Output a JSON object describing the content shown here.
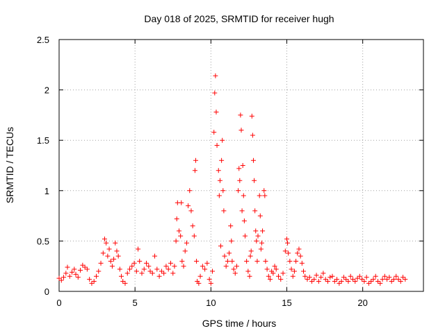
{
  "chart_data": {
    "type": "scatter",
    "title": "Day 018 of 2025, SRMTID for receiver hugh",
    "xlabel": "GPS time / hours",
    "ylabel": "SRMTID / TECUs",
    "xlim": [
      0,
      24
    ],
    "ylim": [
      0,
      2.5
    ],
    "xticks": [
      0,
      5,
      10,
      15,
      20
    ],
    "yticks": [
      0,
      0.5,
      1,
      1.5,
      2,
      2.5
    ],
    "xtick_labels": [
      "0",
      "5",
      "10",
      "15",
      "20"
    ],
    "ytick_labels": [
      "0",
      "0.5",
      "1",
      "1.5",
      "2",
      "2.5"
    ],
    "grid": true,
    "marker": "+",
    "marker_color": "#ff0000",
    "series": [
      {
        "name": "SRMTID",
        "points": [
          [
            0.0,
            0.13
          ],
          [
            0.15,
            0.11
          ],
          [
            0.3,
            0.14
          ],
          [
            0.45,
            0.18
          ],
          [
            0.55,
            0.24
          ],
          [
            0.7,
            0.15
          ],
          [
            0.85,
            0.19
          ],
          [
            1.0,
            0.22
          ],
          [
            1.1,
            0.17
          ],
          [
            1.25,
            0.14
          ],
          [
            1.4,
            0.21
          ],
          [
            1.55,
            0.26
          ],
          [
            1.7,
            0.24
          ],
          [
            1.85,
            0.22
          ],
          [
            2.0,
            0.12
          ],
          [
            2.15,
            0.08
          ],
          [
            2.3,
            0.1
          ],
          [
            2.45,
            0.15
          ],
          [
            2.6,
            0.2
          ],
          [
            2.75,
            0.28
          ],
          [
            2.9,
            0.38
          ],
          [
            3.0,
            0.52
          ],
          [
            3.1,
            0.48
          ],
          [
            3.2,
            0.35
          ],
          [
            3.3,
            0.42
          ],
          [
            3.4,
            0.3
          ],
          [
            3.5,
            0.25
          ],
          [
            3.6,
            0.32
          ],
          [
            3.7,
            0.48
          ],
          [
            3.8,
            0.4
          ],
          [
            3.9,
            0.35
          ],
          [
            4.0,
            0.22
          ],
          [
            4.1,
            0.15
          ],
          [
            4.2,
            0.1
          ],
          [
            4.35,
            0.08
          ],
          [
            4.5,
            0.18
          ],
          [
            4.65,
            0.22
          ],
          [
            4.8,
            0.25
          ],
          [
            4.95,
            0.28
          ],
          [
            5.1,
            0.2
          ],
          [
            5.2,
            0.42
          ],
          [
            5.3,
            0.3
          ],
          [
            5.45,
            0.18
          ],
          [
            5.6,
            0.22
          ],
          [
            5.75,
            0.28
          ],
          [
            5.9,
            0.25
          ],
          [
            6.0,
            0.2
          ],
          [
            6.15,
            0.18
          ],
          [
            6.3,
            0.35
          ],
          [
            6.45,
            0.22
          ],
          [
            6.6,
            0.15
          ],
          [
            6.75,
            0.2
          ],
          [
            6.9,
            0.18
          ],
          [
            7.05,
            0.25
          ],
          [
            7.2,
            0.22
          ],
          [
            7.35,
            0.28
          ],
          [
            7.5,
            0.18
          ],
          [
            7.6,
            0.25
          ],
          [
            7.7,
            0.5
          ],
          [
            7.75,
            0.72
          ],
          [
            7.8,
            0.88
          ],
          [
            7.9,
            0.6
          ],
          [
            8.0,
            0.55
          ],
          [
            8.05,
            0.88
          ],
          [
            8.1,
            0.3
          ],
          [
            8.2,
            0.25
          ],
          [
            8.3,
            0.4
          ],
          [
            8.4,
            0.48
          ],
          [
            8.5,
            0.85
          ],
          [
            8.6,
            1.0
          ],
          [
            8.7,
            0.8
          ],
          [
            8.8,
            0.65
          ],
          [
            8.9,
            0.55
          ],
          [
            8.95,
            1.2
          ],
          [
            9.0,
            1.3
          ],
          [
            9.05,
            0.3
          ],
          [
            9.1,
            0.1
          ],
          [
            9.2,
            0.08
          ],
          [
            9.3,
            0.15
          ],
          [
            9.45,
            0.25
          ],
          [
            9.6,
            0.22
          ],
          [
            9.75,
            0.28
          ],
          [
            9.9,
            0.12
          ],
          [
            10.0,
            0.08
          ],
          [
            10.1,
            0.2
          ],
          [
            10.2,
            1.58
          ],
          [
            10.25,
            1.97
          ],
          [
            10.3,
            2.14
          ],
          [
            10.35,
            1.78
          ],
          [
            10.4,
            1.45
          ],
          [
            10.5,
            1.2
          ],
          [
            10.55,
            0.95
          ],
          [
            10.6,
            1.1
          ],
          [
            10.65,
            0.45
          ],
          [
            10.7,
            1.3
          ],
          [
            10.75,
            1.5
          ],
          [
            10.8,
            1.0
          ],
          [
            10.85,
            0.8
          ],
          [
            10.9,
            0.35
          ],
          [
            11.0,
            0.25
          ],
          [
            11.1,
            0.3
          ],
          [
            11.2,
            0.38
          ],
          [
            11.3,
            0.65
          ],
          [
            11.35,
            0.5
          ],
          [
            11.4,
            0.3
          ],
          [
            11.5,
            0.22
          ],
          [
            11.6,
            0.18
          ],
          [
            11.7,
            0.25
          ],
          [
            11.8,
            1.0
          ],
          [
            11.85,
            1.22
          ],
          [
            11.9,
            1.1
          ],
          [
            11.95,
            1.75
          ],
          [
            12.0,
            1.6
          ],
          [
            12.05,
            0.8
          ],
          [
            12.1,
            1.25
          ],
          [
            12.15,
            0.95
          ],
          [
            12.2,
            0.7
          ],
          [
            12.25,
            0.55
          ],
          [
            12.35,
            0.3
          ],
          [
            12.45,
            0.2
          ],
          [
            12.55,
            0.15
          ],
          [
            12.6,
            0.35
          ],
          [
            12.65,
            0.4
          ],
          [
            12.7,
            1.74
          ],
          [
            12.75,
            1.55
          ],
          [
            12.8,
            1.3
          ],
          [
            12.85,
            1.1
          ],
          [
            12.9,
            0.8
          ],
          [
            12.95,
            0.6
          ],
          [
            13.0,
            0.5
          ],
          [
            13.05,
            0.3
          ],
          [
            13.1,
            0.55
          ],
          [
            13.2,
            0.95
          ],
          [
            13.25,
            0.75
          ],
          [
            13.3,
            0.42
          ],
          [
            13.35,
            0.48
          ],
          [
            13.4,
            0.6
          ],
          [
            13.5,
            1.0
          ],
          [
            13.55,
            0.95
          ],
          [
            13.6,
            0.3
          ],
          [
            13.7,
            0.22
          ],
          [
            13.8,
            0.15
          ],
          [
            13.9,
            0.12
          ],
          [
            14.0,
            0.2
          ],
          [
            14.1,
            0.18
          ],
          [
            14.2,
            0.25
          ],
          [
            14.3,
            0.22
          ],
          [
            14.45,
            0.15
          ],
          [
            14.6,
            0.12
          ],
          [
            14.75,
            0.18
          ],
          [
            14.9,
            0.4
          ],
          [
            15.0,
            0.52
          ],
          [
            15.05,
            0.48
          ],
          [
            15.1,
            0.38
          ],
          [
            15.2,
            0.3
          ],
          [
            15.3,
            0.22
          ],
          [
            15.4,
            0.15
          ],
          [
            15.5,
            0.2
          ],
          [
            15.6,
            0.3
          ],
          [
            15.7,
            0.38
          ],
          [
            15.8,
            0.42
          ],
          [
            15.9,
            0.35
          ],
          [
            16.0,
            0.28
          ],
          [
            16.1,
            0.2
          ],
          [
            16.2,
            0.15
          ],
          [
            16.35,
            0.12
          ],
          [
            16.5,
            0.14
          ],
          [
            16.65,
            0.1
          ],
          [
            16.8,
            0.12
          ],
          [
            16.95,
            0.16
          ],
          [
            17.1,
            0.1
          ],
          [
            17.25,
            0.14
          ],
          [
            17.4,
            0.18
          ],
          [
            17.55,
            0.12
          ],
          [
            17.7,
            0.1
          ],
          [
            17.85,
            0.14
          ],
          [
            18.0,
            0.15
          ],
          [
            18.15,
            0.1
          ],
          [
            18.3,
            0.12
          ],
          [
            18.45,
            0.08
          ],
          [
            18.6,
            0.1
          ],
          [
            18.75,
            0.14
          ],
          [
            18.9,
            0.12
          ],
          [
            19.05,
            0.1
          ],
          [
            19.2,
            0.15
          ],
          [
            19.35,
            0.12
          ],
          [
            19.5,
            0.1
          ],
          [
            19.65,
            0.13
          ],
          [
            19.8,
            0.15
          ],
          [
            19.95,
            0.12
          ],
          [
            20.1,
            0.1
          ],
          [
            20.25,
            0.14
          ],
          [
            20.4,
            0.08
          ],
          [
            20.55,
            0.1
          ],
          [
            20.7,
            0.12
          ],
          [
            20.85,
            0.15
          ],
          [
            21.0,
            0.1
          ],
          [
            21.15,
            0.08
          ],
          [
            21.3,
            0.12
          ],
          [
            21.45,
            0.15
          ],
          [
            21.6,
            0.12
          ],
          [
            21.75,
            0.14
          ],
          [
            21.9,
            0.1
          ],
          [
            22.05,
            0.12
          ],
          [
            22.2,
            0.15
          ],
          [
            22.35,
            0.12
          ],
          [
            22.5,
            0.1
          ],
          [
            22.65,
            0.14
          ],
          [
            22.8,
            0.12
          ]
        ]
      }
    ]
  }
}
